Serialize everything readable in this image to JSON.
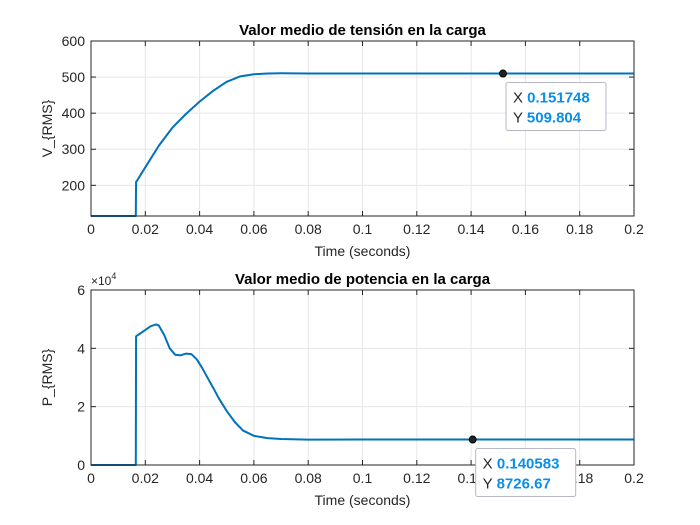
{
  "chart_data": [
    {
      "type": "line",
      "title": "Valor medio de tensión en la carga",
      "xlabel": "Time (seconds)",
      "ylabel": "V_{RMS}",
      "xlim": [
        0,
        0.2
      ],
      "ylim": [
        115,
        600
      ],
      "grid": true,
      "xticks": [
        0,
        0.02,
        0.04,
        0.06,
        0.08,
        0.1,
        0.12,
        0.14,
        0.16,
        0.18,
        0.2
      ],
      "xtick_labels": [
        "0",
        "0.02",
        "0.04",
        "0.06",
        "0.08",
        "0.1",
        "0.12",
        "0.14",
        "0.16",
        "0.18",
        "0.2"
      ],
      "yticks": [
        200,
        300,
        400,
        500,
        600
      ],
      "ytick_labels": [
        "200",
        "300",
        "400",
        "500",
        "600"
      ],
      "series": [
        {
          "color": "#0072BD",
          "x": [
            0,
            0.0165,
            0.0166,
            0.0167,
            0.02,
            0.025,
            0.03,
            0.035,
            0.04,
            0.045,
            0.05,
            0.055,
            0.06,
            0.065,
            0.07,
            0.08,
            0.1,
            0.12,
            0.14,
            0.16,
            0.18,
            0.2
          ],
          "y": [
            115,
            115,
            210,
            210,
            250,
            310,
            360,
            398,
            432,
            462,
            487,
            502,
            508,
            510,
            510.5,
            510,
            509.8,
            509.8,
            509.8,
            509.8,
            509.8,
            509.8
          ]
        }
      ],
      "datatip": {
        "x": 0.151748,
        "y": 509.804,
        "x_label": "X",
        "y_label": "Y",
        "x_text": "0.151748",
        "y_text": "509.804"
      }
    },
    {
      "type": "line",
      "title": "Valor medio de potencia en la carga",
      "xlabel": "Time (seconds)",
      "ylabel": "P_{RMS}",
      "xlim": [
        0,
        0.2
      ],
      "ylim": [
        0,
        60000
      ],
      "grid": true,
      "exponent_label": "×10",
      "exponent_power": "4",
      "xticks": [
        0,
        0.02,
        0.04,
        0.06,
        0.08,
        0.1,
        0.12,
        0.14,
        0.16,
        0.18,
        0.2
      ],
      "xtick_labels": [
        "0",
        "0.02",
        "0.04",
        "0.06",
        "0.08",
        "0.1",
        "0.12",
        "0.14",
        "0.16",
        "0.18",
        "0.2"
      ],
      "yticks": [
        0,
        20000,
        40000,
        60000
      ],
      "ytick_labels": [
        "0",
        "2",
        "4",
        "6"
      ],
      "series": [
        {
          "color": "#0072BD",
          "x": [
            0,
            0.0165,
            0.0166,
            0.0167,
            0.018,
            0.02,
            0.022,
            0.024,
            0.025,
            0.027,
            0.029,
            0.031,
            0.033,
            0.035,
            0.037,
            0.039,
            0.041,
            0.043,
            0.045,
            0.047,
            0.05,
            0.053,
            0.056,
            0.06,
            0.065,
            0.07,
            0.08,
            0.1,
            0.12,
            0.14,
            0.16,
            0.18,
            0.2
          ],
          "y": [
            0,
            0,
            44000,
            44200,
            45000,
            46300,
            47600,
            48200,
            47800,
            44500,
            40000,
            37800,
            37600,
            38200,
            38000,
            36200,
            33200,
            29800,
            26500,
            23000,
            18500,
            14700,
            11800,
            10000,
            9200,
            8900,
            8700,
            8750,
            8730,
            8726,
            8727,
            8727,
            8727
          ]
        }
      ],
      "datatip": {
        "x": 0.140583,
        "y": 8726.67,
        "x_label": "X",
        "y_label": "Y",
        "x_text": "0.140583",
        "y_text": "8726.67"
      }
    }
  ]
}
